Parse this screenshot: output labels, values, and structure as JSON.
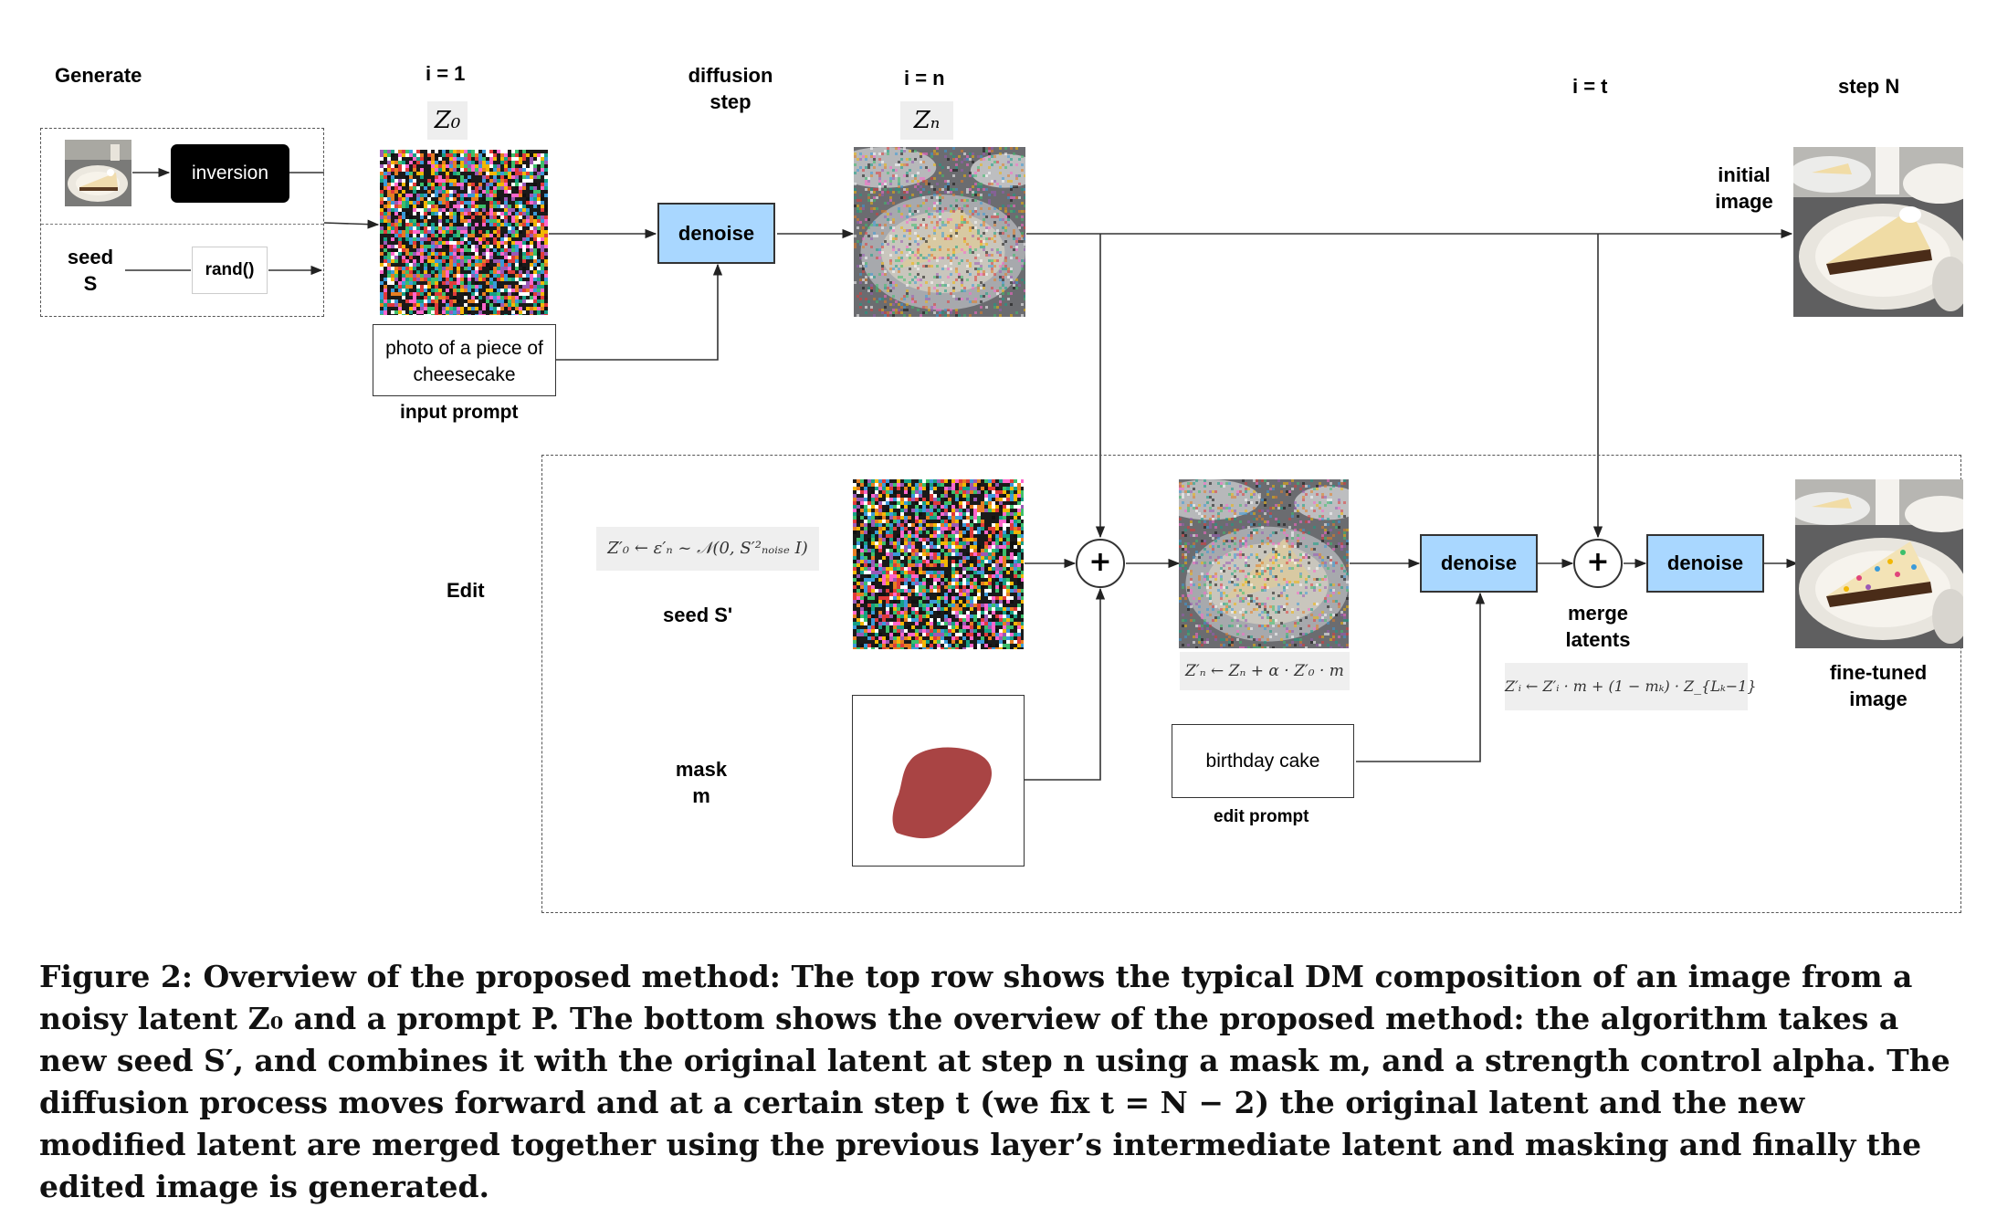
{
  "labels": {
    "generate": "Generate",
    "i_1": "i = 1",
    "z0": "Z₀",
    "diffusion_step": [
      "diffusion",
      "step"
    ],
    "i_n": "i = n",
    "zn": "Zₙ",
    "i_t": "i = t",
    "step_n": "step N",
    "initial_image": [
      "initial",
      "image"
    ],
    "inversion": "inversion",
    "seed_s": [
      "seed",
      "S"
    ],
    "rand": "rand()",
    "denoise": "denoise",
    "input_prompt_text": [
      "photo of a piece of",
      "cheesecake"
    ],
    "input_prompt": "input prompt",
    "edit": "Edit",
    "seed_s_prime": "seed S'",
    "mask_m": [
      "mask",
      "m"
    ],
    "plus": "+",
    "merge_latents": [
      "merge",
      "latents"
    ],
    "birthday_cake": "birthday cake",
    "edit_prompt": "edit prompt",
    "fine_tuned_image": [
      "fine-tuned",
      "image"
    ]
  },
  "formulas": {
    "seed_formula": "Z′₀ ← ε′ₙ ~ 𝒩(0, S′²ₙₒᵢₛₑ I)",
    "edit_formula": "Z′ₙ ← Zₙ + α · Z′₀ · m",
    "merge_formula": "Z′ᵢ ← Z′ᵢ · m + (1 − mₖ) · Z_{Lₖ−1}"
  },
  "caption": "Figure 2: Overview of the proposed method: The top row shows the typical DM composition of an image from a noisy latent Z₀ and a prompt P. The bottom shows the overview of the proposed method: the algorithm takes a new seed S′, and combines it with the original latent at step n using a mask m, and a strength control alpha. The diffusion process moves forward and at a certain step t (we fix t = N − 2) the original latent and the new modified latent are merged together using the previous layer’s intermediate latent and masking and finally the edited image is generated.",
  "colors": {
    "denoise_fill": "#a9d7ff",
    "mask_fill": "#a94444",
    "formula_bg": "#efefef"
  }
}
